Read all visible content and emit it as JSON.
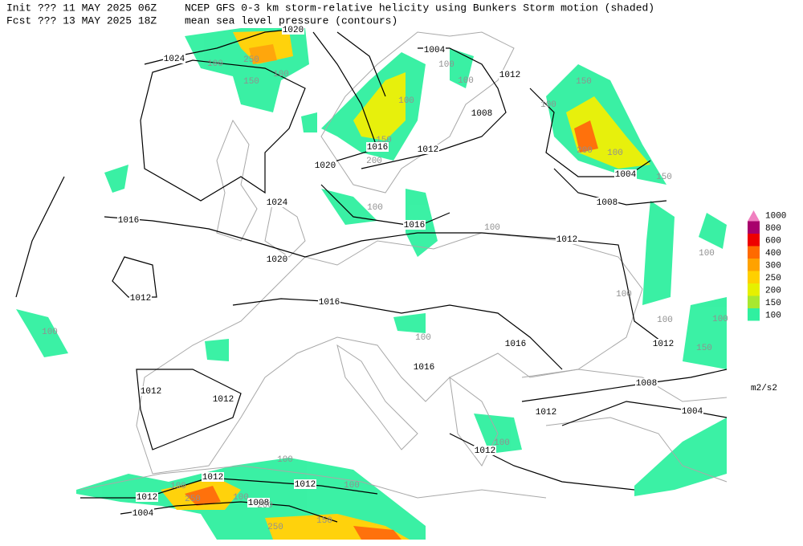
{
  "header": {
    "init": "Init  ??? 11 MAY 2025 06Z",
    "fcst": "Fcst ??? 13 MAY 2025 18Z",
    "title": "NCEP GFS 0-3 km storm-relative helicity using Bunkers Storm motion (shaded)",
    "subtitle": "mean sea level pressure (contours)"
  },
  "legend": {
    "levels": [
      {
        "label": "1000",
        "color": "#f080c0"
      },
      {
        "label": "800",
        "color": "#a8006c"
      },
      {
        "label": "600",
        "color": "#ee0000"
      },
      {
        "label": "400",
        "color": "#ff6a00"
      },
      {
        "label": "300",
        "color": "#ffa200"
      },
      {
        "label": "250",
        "color": "#ffd000"
      },
      {
        "label": "200",
        "color": "#e6f000"
      },
      {
        "label": "150",
        "color": "#a8e830"
      },
      {
        "label": "100",
        "color": "#30f0a0"
      }
    ],
    "unit": "m2/s2"
  },
  "contour_labels": [
    "1020",
    "1024",
    "1004",
    "1012",
    "1008",
    "1016",
    "1012",
    "1020",
    "1004",
    "1024",
    "1008",
    "1016",
    "1016",
    "1012",
    "1020",
    "1012",
    "1016",
    "1016",
    "1012",
    "1016",
    "1012",
    "1012",
    "1008",
    "1012",
    "1004",
    "1012",
    "1012",
    "1012",
    "1012",
    "1008",
    "1004"
  ],
  "helicity_labels": [
    "250",
    "100",
    "150",
    "100",
    "100",
    "100",
    "150",
    "100",
    "100",
    "150",
    "200",
    "200",
    "100",
    "150",
    "100",
    "100",
    "100",
    "100",
    "100",
    "100",
    "150",
    "100",
    "100",
    "100",
    "100",
    "250",
    "100",
    "200",
    "100",
    "250",
    "150",
    "100"
  ]
}
